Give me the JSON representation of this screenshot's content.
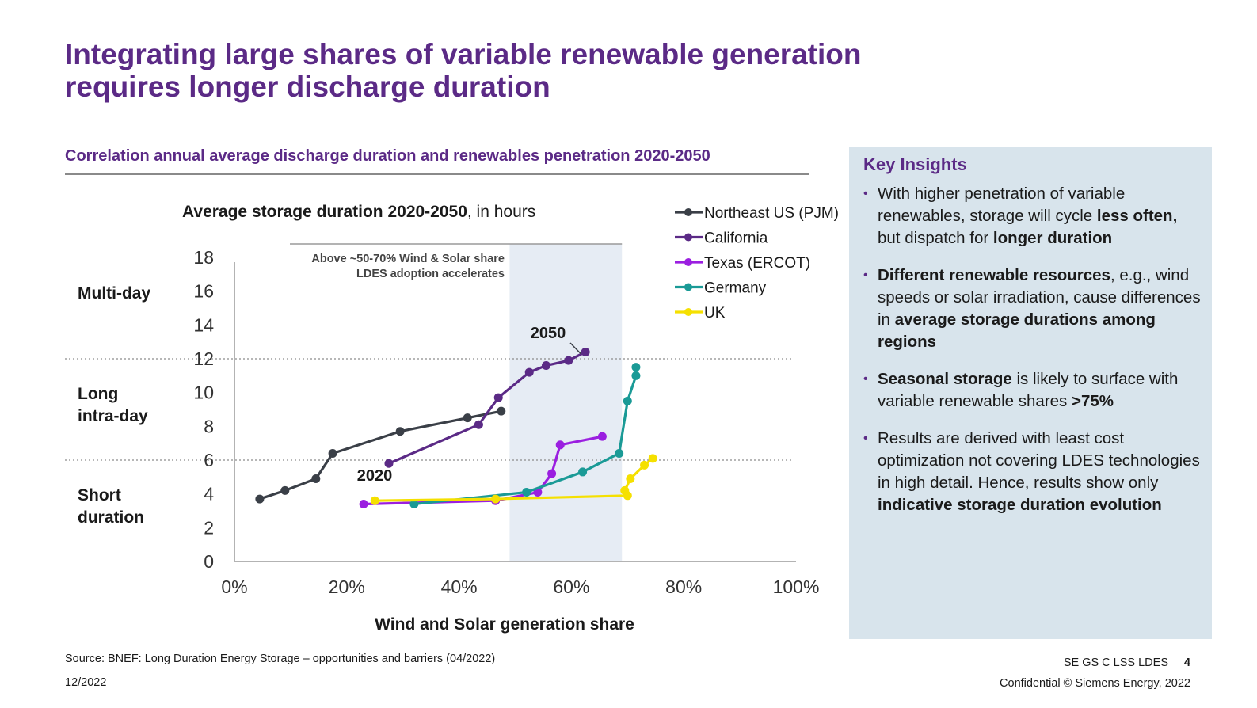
{
  "title": "Integrating large shares of variable renewable generation requires longer discharge duration",
  "subtitle": "Correlation annual average discharge duration and renewables penetration 2020-2050",
  "chart_data": {
    "type": "line",
    "title_bold": "Average storage duration 2020-2050",
    "title_rest": ", in hours",
    "xlabel": "Wind and Solar generation share",
    "ylabel": "",
    "xlim": [
      0,
      100
    ],
    "ylim": [
      0,
      18
    ],
    "x_ticks": [
      0,
      20,
      40,
      60,
      80,
      100
    ],
    "x_tick_labels": [
      "0%",
      "20%",
      "40%",
      "60%",
      "80%",
      "100%"
    ],
    "y_ticks": [
      0,
      2,
      4,
      6,
      8,
      10,
      12,
      14,
      16,
      18
    ],
    "y_tick_labels": [
      "0",
      "2",
      "4",
      "6",
      "8",
      "10",
      "12",
      "14",
      "16",
      "18"
    ],
    "grid": false,
    "reference_lines_y": [
      6,
      12
    ],
    "highlight_band": {
      "x_range": [
        49,
        69
      ],
      "label_line1": "Above ~50-70% Wind & Solar share",
      "label_line2": "LDES adoption accelerates"
    },
    "band_categories": [
      "Multi-day",
      "Long intra-day",
      "Short duration"
    ],
    "annotations": [
      "2050",
      "2020"
    ],
    "legend_position": "top-right",
    "series": [
      {
        "name": "Northeast US (PJM)",
        "color": "#3a3f47",
        "x": [
          4.5,
          9,
          14.5,
          17.5,
          29.5,
          41.5,
          47.5
        ],
        "y": [
          3.7,
          4.2,
          4.9,
          6.4,
          7.7,
          8.5,
          8.9
        ]
      },
      {
        "name": "California",
        "color": "#5b2a86",
        "x": [
          27.5,
          43.5,
          47,
          52.5,
          55.5,
          59.5,
          62.5
        ],
        "y": [
          5.8,
          8.1,
          9.7,
          11.2,
          11.6,
          11.9,
          12.4
        ]
      },
      {
        "name": "Texas (ERCOT)",
        "color": "#9b1fe0",
        "x": [
          23,
          46.5,
          54,
          56.5,
          58,
          65.5
        ],
        "y": [
          3.4,
          3.6,
          4.1,
          5.2,
          6.9,
          7.4
        ]
      },
      {
        "name": "Germany",
        "color": "#1a9a96",
        "x": [
          32,
          52,
          62,
          68.5,
          70,
          71.5,
          71.5
        ],
        "y": [
          3.4,
          4.1,
          5.3,
          6.4,
          9.5,
          11.0,
          11.5
        ]
      },
      {
        "name": "UK",
        "color": "#f5e000",
        "x": [
          25,
          46.5,
          70,
          69.5,
          70.5,
          73,
          74.5
        ],
        "y": [
          3.6,
          3.7,
          3.9,
          4.2,
          4.9,
          5.7,
          6.1
        ]
      }
    ]
  },
  "insights": {
    "title": "Key Insights",
    "items": [
      [
        {
          "t": "With higher penetration of variable renewables, storage will cycle ",
          "b": false
        },
        {
          "t": "less often,",
          "b": true
        },
        {
          "t": " but dispatch for ",
          "b": false
        },
        {
          "t": "longer duration",
          "b": true
        }
      ],
      [
        {
          "t": "Different renewable resources",
          "b": true
        },
        {
          "t": ", e.g., wind speeds or solar irradiation, cause differences in ",
          "b": false
        },
        {
          "t": "average storage durations among regions",
          "b": true
        }
      ],
      [
        {
          "t": "Seasonal storage",
          "b": true
        },
        {
          "t": " is likely to surface with variable renewable shares ",
          "b": false
        },
        {
          "t": ">75%",
          "b": true
        }
      ],
      [
        {
          "t": "Results are derived with least cost optimization not covering LDES technologies in high detail. Hence, results show only ",
          "b": false
        },
        {
          "t": "indicative storage duration evolution",
          "b": true
        }
      ]
    ]
  },
  "footer": {
    "source": "Source: BNEF: Long Duration Energy Storage – opportunities and barriers (04/2022)",
    "date": "12/2022",
    "code": "SE GS C LSS LDES",
    "page": "4",
    "confidential": "Confidential © Siemens Energy, 2022"
  }
}
